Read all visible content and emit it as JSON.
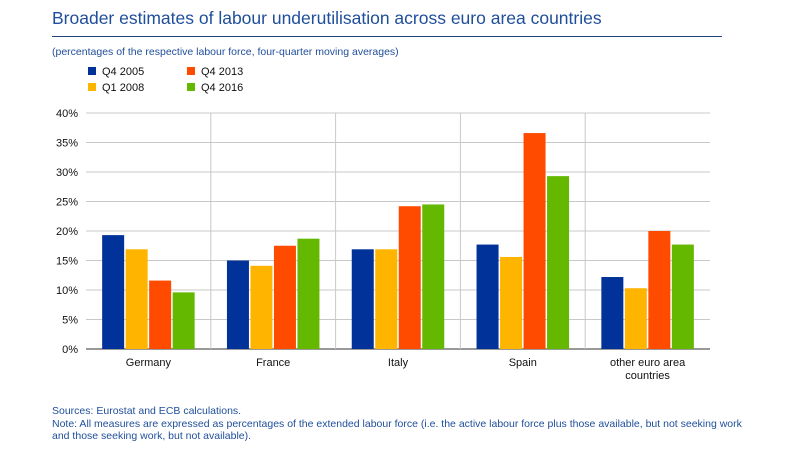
{
  "header": {
    "title": "Broader estimates of labour underutilisation across euro area countries",
    "subtitle": "(percentages of the respective labour force, four-quarter moving averages)"
  },
  "chart_data": {
    "type": "bar",
    "categories": [
      "Germany",
      "France",
      "Italy",
      "Spain",
      "other euro area countries"
    ],
    "category_label_lines": [
      [
        "Germany"
      ],
      [
        "France"
      ],
      [
        "Italy"
      ],
      [
        "Spain"
      ],
      [
        "other euro area",
        "countries"
      ]
    ],
    "series": [
      {
        "name": "Q4 2005",
        "color": "#003299",
        "values": [
          19.3,
          15.0,
          16.9,
          17.7,
          12.2
        ]
      },
      {
        "name": "Q1 2008",
        "color": "#ffb400",
        "values": [
          16.9,
          14.1,
          16.9,
          15.6,
          10.3
        ]
      },
      {
        "name": "Q4 2013",
        "color": "#ff4b00",
        "values": [
          11.6,
          17.5,
          24.2,
          36.6,
          20.0
        ]
      },
      {
        "name": "Q4 2016",
        "color": "#65b800",
        "values": [
          9.6,
          18.7,
          24.5,
          29.3,
          17.7
        ]
      }
    ],
    "ylim": [
      0,
      40
    ],
    "yticks": [
      0,
      5,
      10,
      15,
      20,
      25,
      30,
      35,
      40
    ],
    "ytick_labels": [
      "0%",
      "5%",
      "10%",
      "15%",
      "20%",
      "25%",
      "30%",
      "35%",
      "40%"
    ],
    "grid": "horizontal and vertical category separators",
    "legend_placement": "top-left"
  },
  "footer": {
    "sources": "Sources: Eurostat and ECB calculations.",
    "note": "Note: All measures are expressed as percentages of the extended labour force (i.e. the active labour force plus those available, but not seeking work and those seeking work, but not available)."
  }
}
